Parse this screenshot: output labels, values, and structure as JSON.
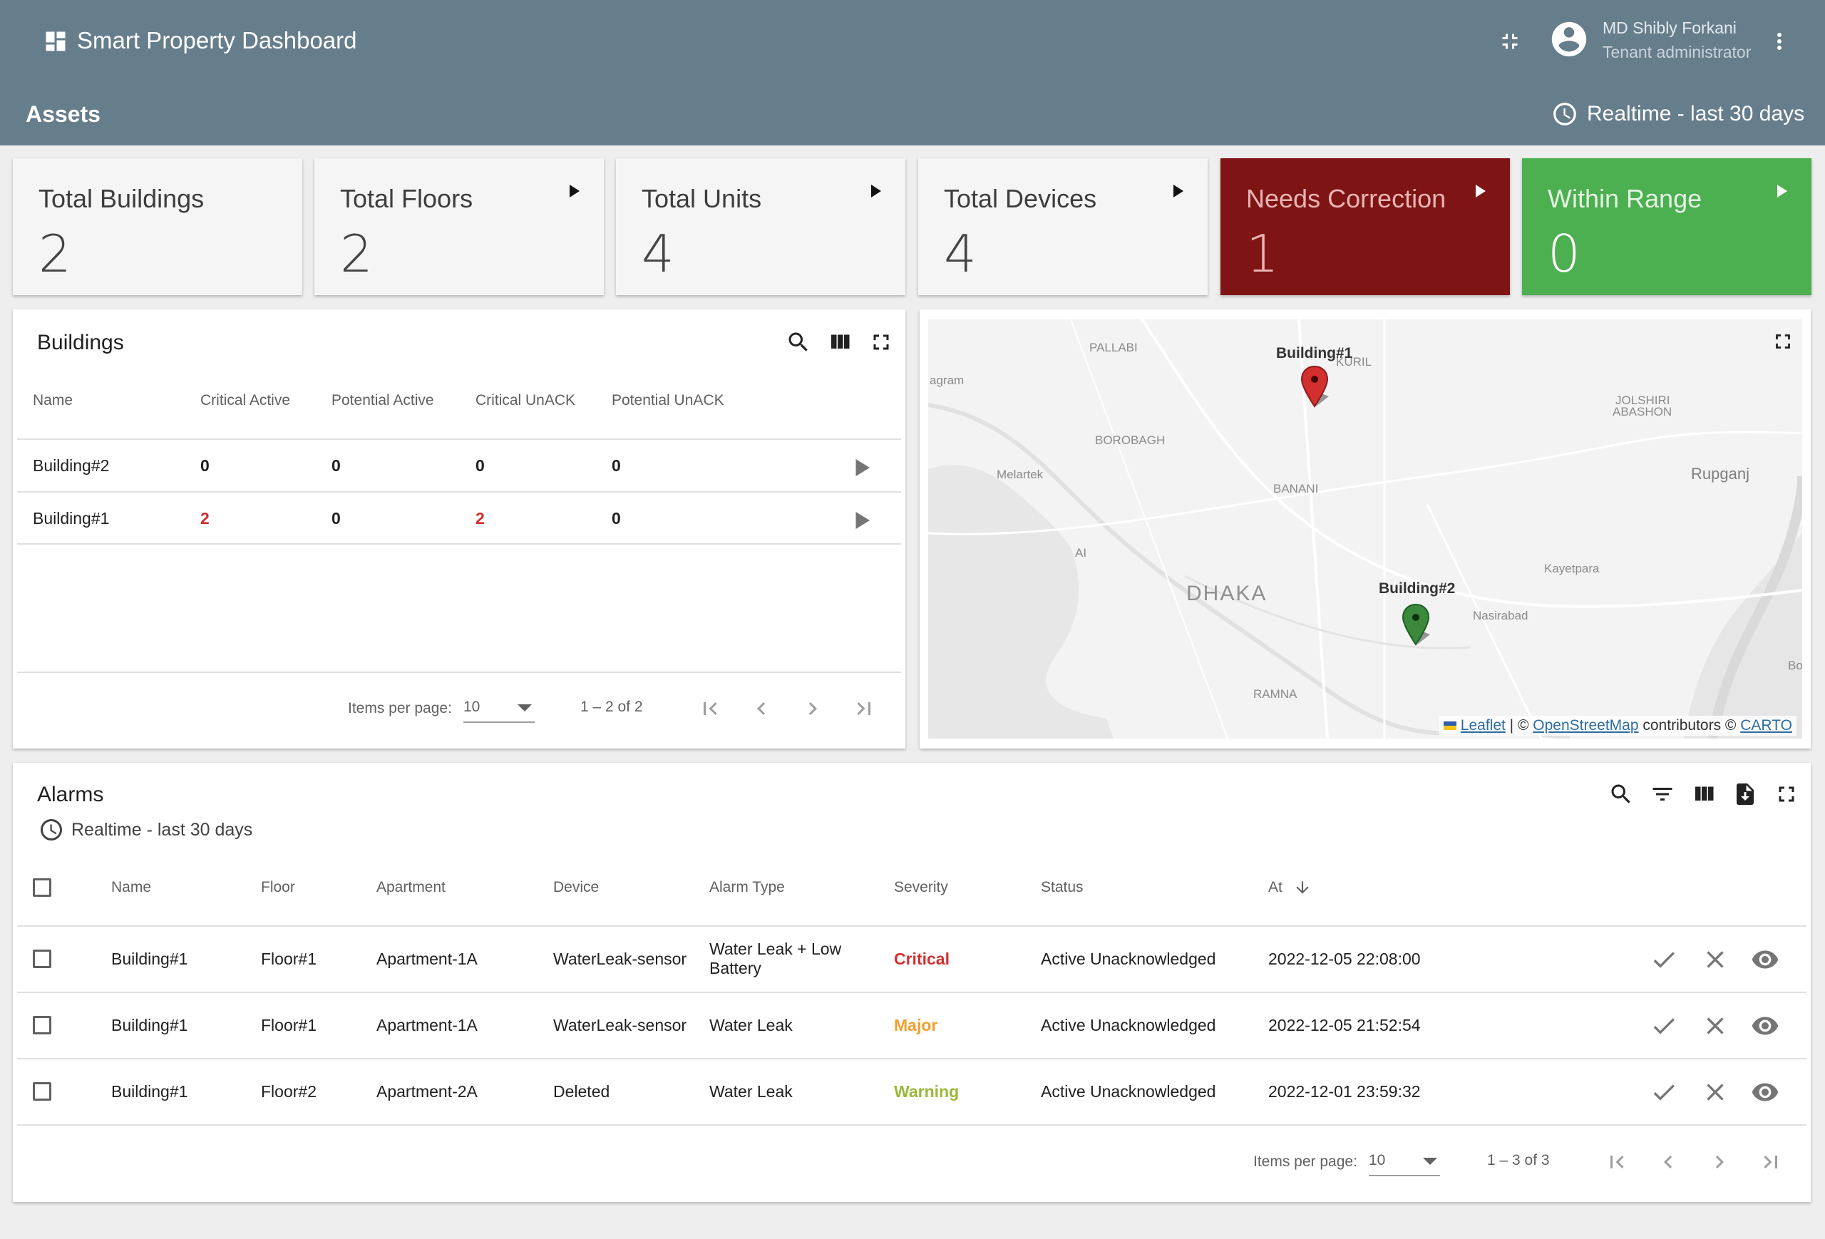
{
  "app": {
    "title": "Smart Property Dashboard",
    "user_name": "MD Shibly Forkani",
    "user_role": "Tenant administrator"
  },
  "page": {
    "title": "Assets",
    "timewindow": "Realtime - last 30 days"
  },
  "stats": [
    {
      "label": "Total Buildings",
      "value": "2",
      "arrow": false
    },
    {
      "label": "Total Floors",
      "value": "2",
      "arrow": true
    },
    {
      "label": "Total Units",
      "value": "4",
      "arrow": true
    },
    {
      "label": "Total Devices",
      "value": "4",
      "arrow": true
    },
    {
      "label": "Needs Correction",
      "value": "1",
      "arrow": true,
      "color": "#7f1414"
    },
    {
      "label": "Within Range",
      "value": "0",
      "arrow": true,
      "color": "#4caf50"
    }
  ],
  "buildings": {
    "title": "Buildings",
    "columns": [
      "Name",
      "Critical Active",
      "Potential Active",
      "Critical UnACK",
      "Potential UnACK"
    ],
    "rows": [
      {
        "name": "Building#2",
        "critical_active": "0",
        "potential_active": "0",
        "critical_unack": "0",
        "potential_unack": "0"
      },
      {
        "name": "Building#1",
        "critical_active": "2",
        "potential_active": "0",
        "critical_unack": "2",
        "potential_unack": "0"
      }
    ],
    "pager": {
      "items_per_page_label": "Items per page:",
      "page_size": "10",
      "range": "1 – 2 of 2"
    }
  },
  "map": {
    "labels": {
      "pallabi": "PALLABI",
      "kuril": "KURIL",
      "agram": "agram",
      "borobagh": "BOROBAGH",
      "joshiri": "JOLSHIRI",
      "abashon": "ABASHON",
      "melartek": "Melartek",
      "banani": "BANANI",
      "rupganj": "Rupganj",
      "ai": "AI",
      "kayetpara": "Kayetpara",
      "dhaka": "DHAKA",
      "nasirabad": "Nasirabad",
      "ramna": "RAMNA",
      "bo": "Bo"
    },
    "markers": [
      {
        "label": "Building#1",
        "color": "#d32f2f"
      },
      {
        "label": "Building#2",
        "color": "#2e7d32"
      }
    ],
    "attribution": {
      "leaflet": "Leaflet",
      "sep1": " | © ",
      "osm": "OpenStreetMap",
      "mid": " contributors © ",
      "carto": "CARTO"
    }
  },
  "alarms": {
    "title": "Alarms",
    "timewindow": "Realtime - last 30 days",
    "columns": [
      "Name",
      "Floor",
      "Apartment",
      "Device",
      "Alarm Type",
      "Severity",
      "Status",
      "At"
    ],
    "rows": [
      {
        "name": "Building#1",
        "floor": "Floor#1",
        "apartment": "Apartment-1A",
        "device": "WaterLeak-sensor",
        "type_line1": "Water Leak + Low",
        "type_line2": "Battery",
        "severity": "Critical",
        "severity_color": "#d32f2f",
        "status": "Active Unacknowledged",
        "at": "2022-12-05 22:08:00"
      },
      {
        "name": "Building#1",
        "floor": "Floor#1",
        "apartment": "Apartment-1A",
        "device": "WaterLeak-sensor",
        "type_line1": "Water Leak",
        "type_line2": "",
        "severity": "Major",
        "severity_color": "#f0a030",
        "status": "Active Unacknowledged",
        "at": "2022-12-05 21:52:54"
      },
      {
        "name": "Building#1",
        "floor": "Floor#2",
        "apartment": "Apartment-2A",
        "device": "Deleted",
        "type_line1": "Water Leak",
        "type_line2": "",
        "severity": "Warning",
        "severity_color": "#9ab93a",
        "status": "Active Unacknowledged",
        "at": "2022-12-01 23:59:32"
      }
    ],
    "pager": {
      "items_per_page_label": "Items per page:",
      "page_size": "10",
      "range": "1 – 3 of 3"
    }
  }
}
